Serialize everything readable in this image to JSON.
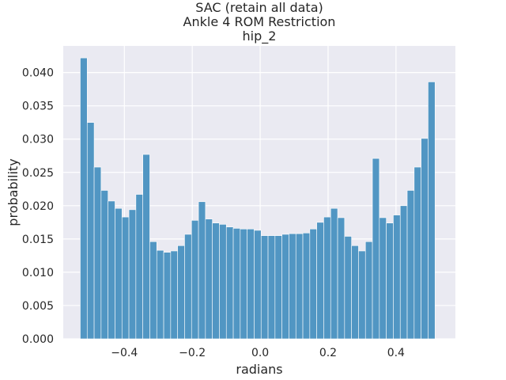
{
  "chart_data": {
    "type": "bar",
    "title_lines": [
      "SAC (retain all data)",
      "Ankle 4 ROM Restriction",
      "hip_2"
    ],
    "xlabel": "radians",
    "ylabel": "probability",
    "x_range": [
      -0.53,
      0.515
    ],
    "xlim": [
      -0.58,
      0.575
    ],
    "ylim": [
      0,
      0.044
    ],
    "x_ticks": [
      -0.4,
      -0.2,
      0.0,
      0.2,
      0.4
    ],
    "x_tick_labels": [
      "−0.4",
      "−0.2",
      "0.0",
      "0.2",
      "0.4"
    ],
    "y_ticks": [
      0,
      0.005,
      0.01,
      0.015,
      0.02,
      0.025,
      0.03,
      0.035,
      0.04
    ],
    "y_tick_labels": [
      "0.000",
      "0.005",
      "0.010",
      "0.015",
      "0.020",
      "0.025",
      "0.030",
      "0.035",
      "0.040"
    ],
    "grid": true,
    "values": [
      0.0422,
      0.0325,
      0.0258,
      0.0223,
      0.0207,
      0.0196,
      0.0183,
      0.0194,
      0.0217,
      0.0277,
      0.0146,
      0.0133,
      0.013,
      0.0132,
      0.014,
      0.0157,
      0.0178,
      0.0206,
      0.018,
      0.0174,
      0.0172,
      0.0168,
      0.0166,
      0.0165,
      0.0165,
      0.0163,
      0.0155,
      0.0155,
      0.0155,
      0.0157,
      0.0158,
      0.0158,
      0.0159,
      0.0165,
      0.0175,
      0.0183,
      0.0196,
      0.0182,
      0.0154,
      0.014,
      0.0132,
      0.0146,
      0.0271,
      0.0182,
      0.0174,
      0.0186,
      0.02,
      0.0223,
      0.0258,
      0.0301,
      0.0386
    ],
    "bar_color": "#5196c3",
    "bar_edge": "#ffffff",
    "background": "#eaeaf2",
    "grid_color": "#ffffff"
  }
}
